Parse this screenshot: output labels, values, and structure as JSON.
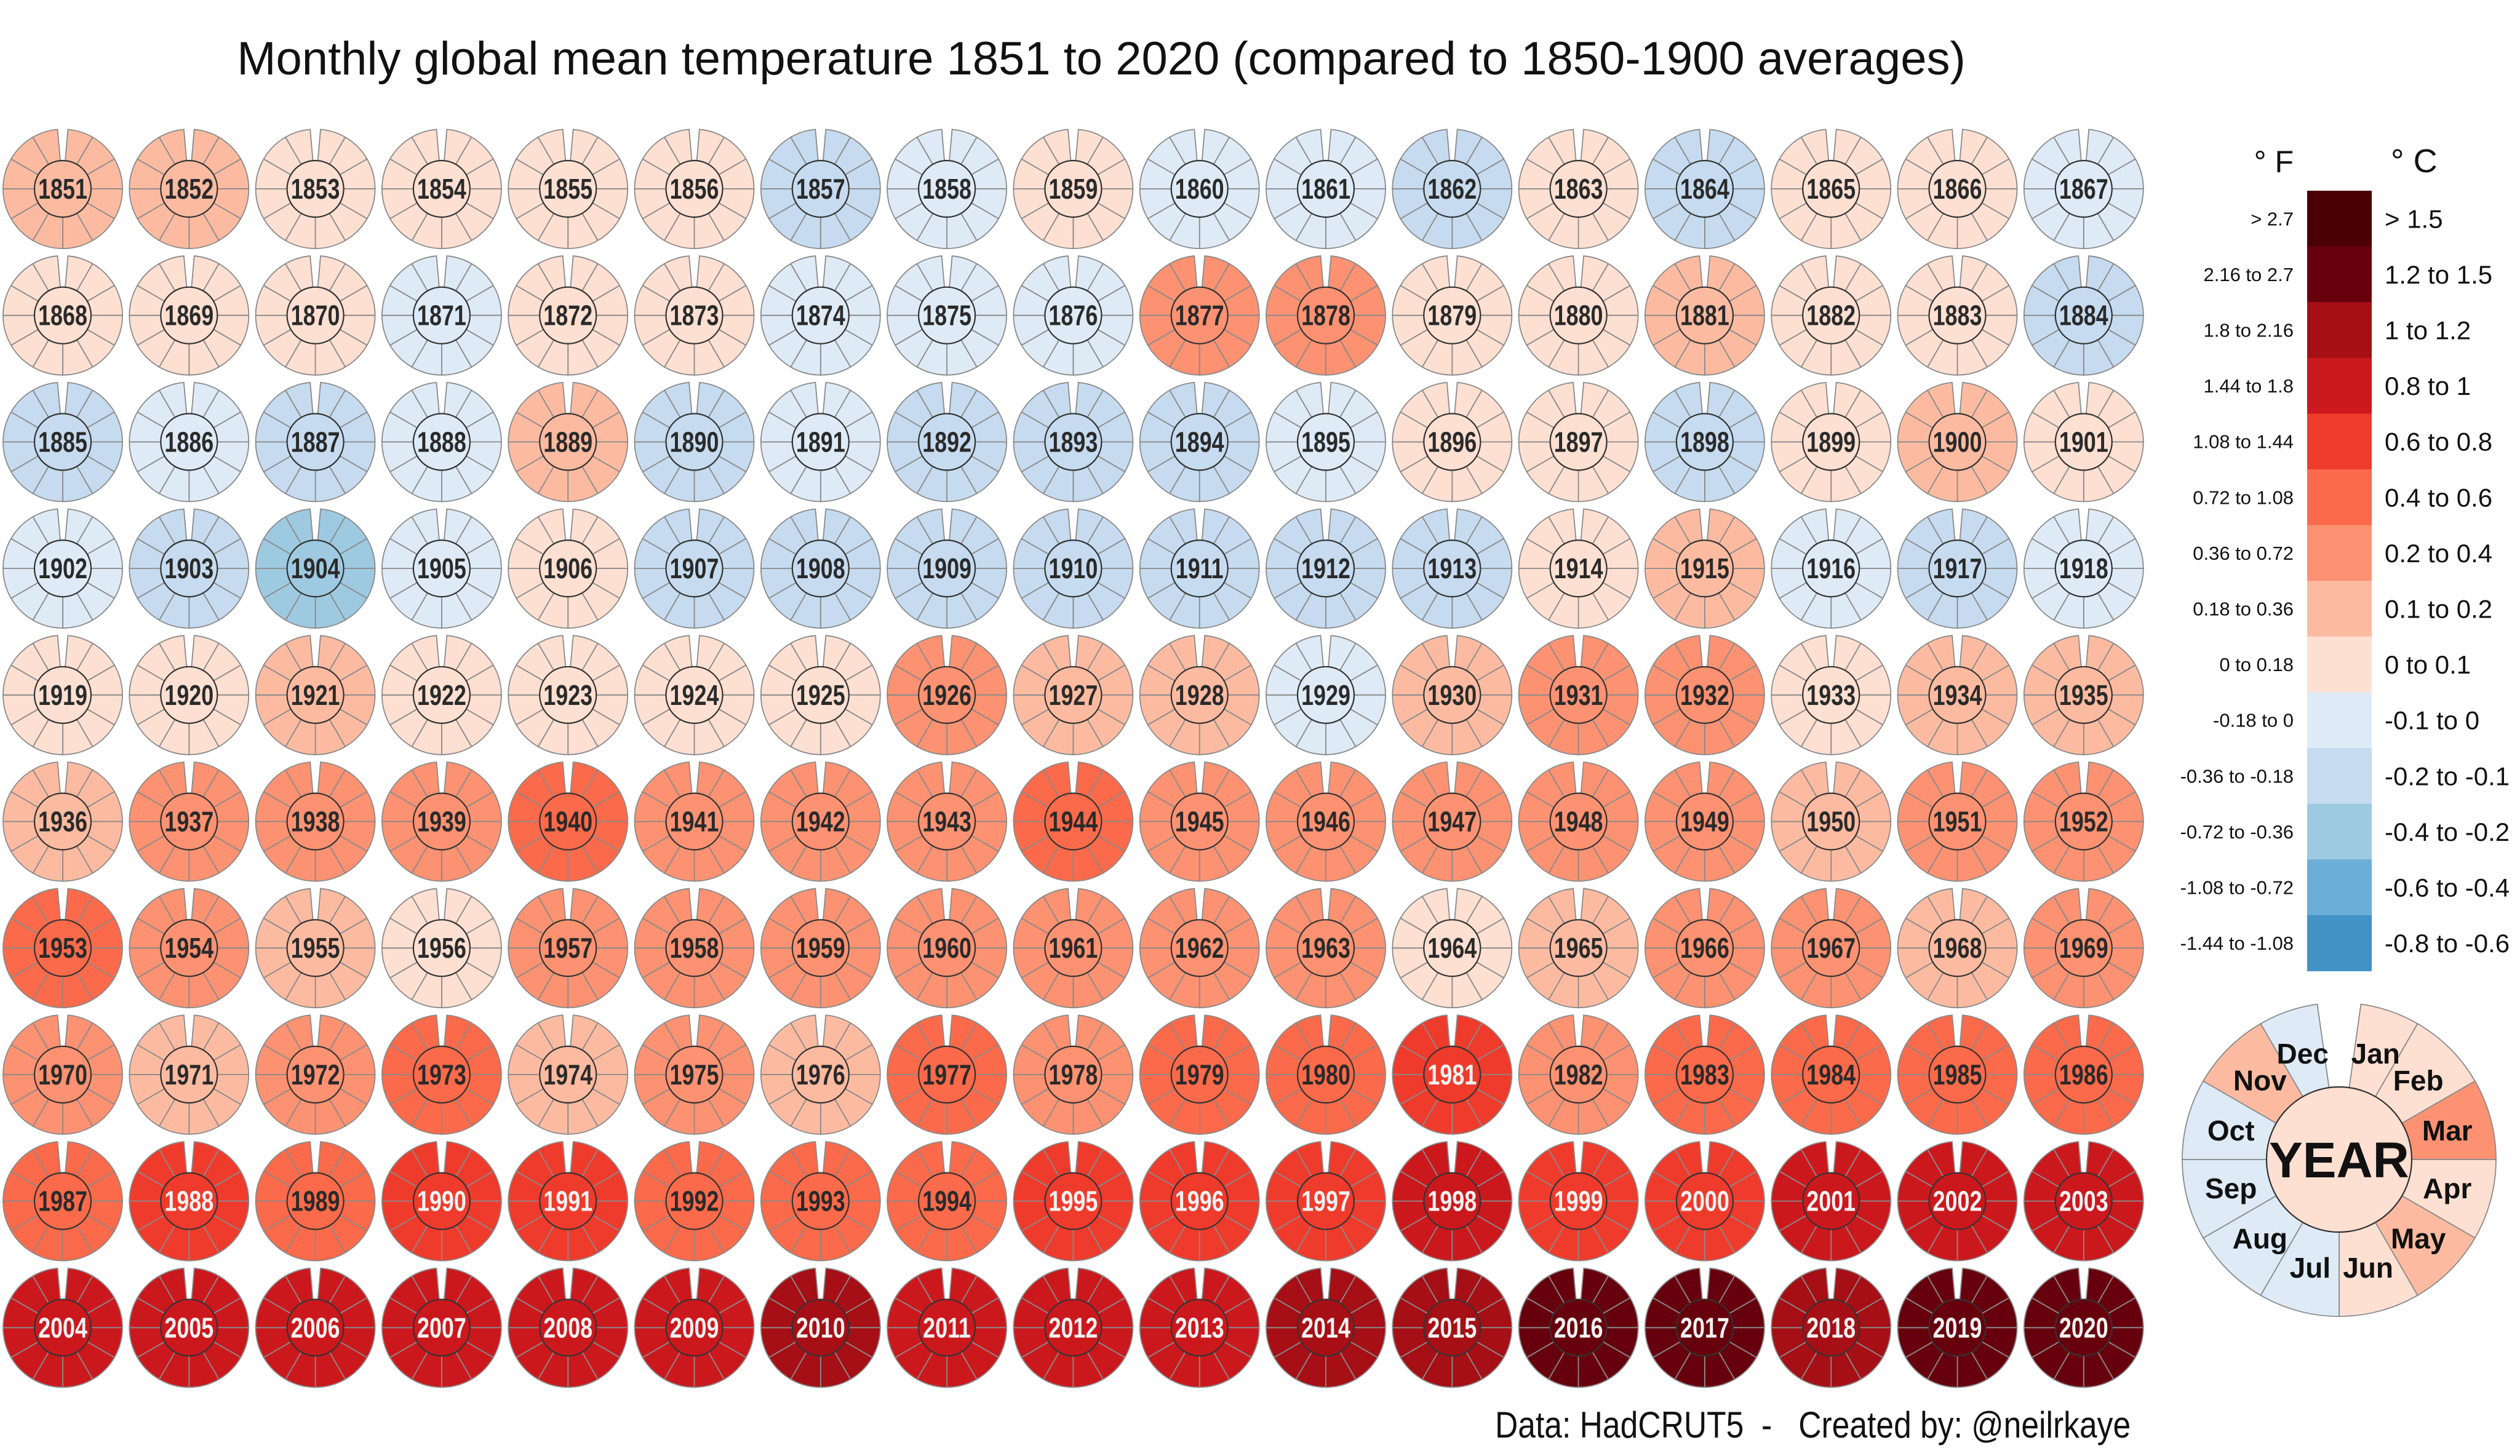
{
  "chart_data": {
    "type": "heatmap",
    "title": "Monthly global mean temperature 1851 to 2020 (compared to 1850-1900 averages)",
    "layout": "radial month wheels, one per year, annual mean in centre",
    "years": [
      1851,
      1852,
      1853,
      1854,
      1855,
      1856,
      1857,
      1858,
      1859,
      1860,
      1861,
      1862,
      1863,
      1864,
      1865,
      1866,
      1867,
      1868,
      1869,
      1870,
      1871,
      1872,
      1873,
      1874,
      1875,
      1876,
      1877,
      1878,
      1879,
      1880,
      1881,
      1882,
      1883,
      1884,
      1885,
      1886,
      1887,
      1888,
      1889,
      1890,
      1891,
      1892,
      1893,
      1894,
      1895,
      1896,
      1897,
      1898,
      1899,
      1900,
      1901,
      1902,
      1903,
      1904,
      1905,
      1906,
      1907,
      1908,
      1909,
      1910,
      1911,
      1912,
      1913,
      1914,
      1915,
      1916,
      1917,
      1918,
      1919,
      1920,
      1921,
      1922,
      1923,
      1924,
      1925,
      1926,
      1927,
      1928,
      1929,
      1930,
      1931,
      1932,
      1933,
      1934,
      1935,
      1936,
      1937,
      1938,
      1939,
      1940,
      1941,
      1942,
      1943,
      1944,
      1945,
      1946,
      1947,
      1948,
      1949,
      1950,
      1951,
      1952,
      1953,
      1954,
      1955,
      1956,
      1957,
      1958,
      1959,
      1960,
      1961,
      1962,
      1963,
      1964,
      1965,
      1966,
      1967,
      1968,
      1969,
      1970,
      1971,
      1972,
      1973,
      1974,
      1975,
      1976,
      1977,
      1978,
      1979,
      1980,
      1981,
      1982,
      1983,
      1984,
      1985,
      1986,
      1987,
      1988,
      1989,
      1990,
      1991,
      1992,
      1993,
      1994,
      1995,
      1996,
      1997,
      1998,
      1999,
      2000,
      2001,
      2002,
      2003,
      2004,
      2005,
      2006,
      2007,
      2008,
      2009,
      2010,
      2011,
      2012,
      2013,
      2014,
      2015,
      2016,
      2017,
      2018,
      2019,
      2020
    ],
    "annual_anomaly_c": [
      0.15,
      0.15,
      0.05,
      0.05,
      0.05,
      0.05,
      -0.15,
      -0.05,
      0.05,
      -0.05,
      -0.05,
      -0.15,
      0.05,
      -0.15,
      0.05,
      0.05,
      -0.05,
      0.05,
      0.05,
      0.05,
      -0.05,
      0.05,
      0.05,
      -0.05,
      -0.05,
      -0.05,
      0.3,
      0.3,
      0.05,
      0.05,
      0.15,
      0.05,
      0.05,
      -0.15,
      -0.15,
      -0.05,
      -0.15,
      -0.05,
      0.15,
      -0.15,
      -0.05,
      -0.15,
      -0.15,
      -0.15,
      -0.05,
      0.05,
      0.05,
      -0.15,
      0.05,
      0.15,
      0.05,
      -0.05,
      -0.15,
      -0.3,
      -0.05,
      0.05,
      -0.15,
      -0.15,
      -0.15,
      -0.15,
      -0.15,
      -0.15,
      -0.15,
      0.05,
      0.15,
      -0.05,
      -0.15,
      -0.05,
      0.05,
      0.05,
      0.15,
      0.05,
      0.05,
      0.05,
      0.05,
      0.3,
      0.15,
      0.15,
      -0.05,
      0.15,
      0.3,
      0.3,
      0.05,
      0.15,
      0.15,
      0.15,
      0.3,
      0.3,
      0.3,
      0.5,
      0.3,
      0.3,
      0.3,
      0.5,
      0.3,
      0.3,
      0.3,
      0.3,
      0.3,
      0.15,
      0.3,
      0.3,
      0.5,
      0.3,
      0.15,
      0.05,
      0.3,
      0.3,
      0.3,
      0.3,
      0.3,
      0.3,
      0.3,
      0.05,
      0.15,
      0.3,
      0.3,
      0.15,
      0.3,
      0.3,
      0.15,
      0.3,
      0.5,
      0.15,
      0.3,
      0.15,
      0.5,
      0.3,
      0.5,
      0.5,
      0.7,
      0.3,
      0.5,
      0.5,
      0.5,
      0.5,
      0.5,
      0.7,
      0.5,
      0.7,
      0.7,
      0.5,
      0.5,
      0.5,
      0.7,
      0.7,
      0.7,
      0.9,
      0.7,
      0.7,
      0.9,
      0.9,
      0.9,
      0.9,
      0.9,
      0.9,
      0.9,
      0.9,
      0.9,
      1.1,
      0.9,
      0.9,
      0.9,
      1.1,
      1.1,
      1.35,
      1.35,
      1.1,
      1.35,
      1.35
    ],
    "month_order": [
      "Jan",
      "Feb",
      "Mar",
      "Apr",
      "May",
      "Jun",
      "Jul",
      "Aug",
      "Sep",
      "Oct",
      "Nov",
      "Dec"
    ],
    "legend": {
      "f_header": "° F",
      "c_header": "° C",
      "bins": [
        {
          "f": "> 2.7",
          "c": "> 1.5",
          "min": 1.5,
          "color": "#4a0004"
        },
        {
          "f": "2.16 to 2.7",
          "c": "1.2 to 1.5",
          "min": 1.2,
          "color": "#67000d"
        },
        {
          "f": "1.8 to 2.16",
          "c": "1 to 1.2",
          "min": 1.0,
          "color": "#a50f15"
        },
        {
          "f": "1.44 to 1.8",
          "c": "0.8 to 1",
          "min": 0.8,
          "color": "#cb181d"
        },
        {
          "f": "1.08 to 1.44",
          "c": "0.6 to 0.8",
          "min": 0.6,
          "color": "#ef3b2c"
        },
        {
          "f": "0.72 to 1.08",
          "c": "0.4 to 0.6",
          "min": 0.4,
          "color": "#fb6a4a"
        },
        {
          "f": "0.36 to 0.72",
          "c": "0.2 to 0.4",
          "min": 0.2,
          "color": "#fc9272"
        },
        {
          "f": "0.18 to 0.36",
          "c": "0.1 to 0.2",
          "min": 0.1,
          "color": "#fcbba1"
        },
        {
          "f": "0 to 0.18",
          "c": "0 to 0.1",
          "min": 0.0,
          "color": "#fee0d2"
        },
        {
          "f": "-0.18 to 0",
          "c": "-0.1 to 0",
          "min": -0.1,
          "color": "#deebf7"
        },
        {
          "f": "-0.36 to -0.18",
          "c": "-0.2 to -0.1",
          "min": -0.2,
          "color": "#c6dbef"
        },
        {
          "f": "-0.72 to -0.36",
          "c": "-0.4 to -0.2",
          "min": -0.4,
          "color": "#9ecae1"
        },
        {
          "f": "-1.08 to -0.72",
          "c": "-0.6 to -0.4",
          "min": -0.6,
          "color": "#6baed6"
        },
        {
          "f": "-1.44 to -1.08",
          "c": "-0.8 to -0.6",
          "min": -0.8,
          "color": "#4292c6"
        }
      ]
    },
    "key_wheel": {
      "center_label": "YEAR",
      "center_value": 0.05,
      "months": [
        {
          "label": "Jan",
          "value": 0.05
        },
        {
          "label": "Feb",
          "value": 0.05
        },
        {
          "label": "Mar",
          "value": 0.3
        },
        {
          "label": "Apr",
          "value": 0.05
        },
        {
          "label": "May",
          "value": 0.15
        },
        {
          "label": "Jun",
          "value": 0.05
        },
        {
          "label": "Jul",
          "value": -0.05
        },
        {
          "label": "Aug",
          "value": -0.05
        },
        {
          "label": "Sep",
          "value": -0.05
        },
        {
          "label": "Oct",
          "value": -0.05
        },
        {
          "label": "Nov",
          "value": 0.15
        },
        {
          "label": "Dec",
          "value": -0.05
        }
      ]
    }
  },
  "footer": "Data: HadCRUT5  -   Created by: @neilrkaye"
}
